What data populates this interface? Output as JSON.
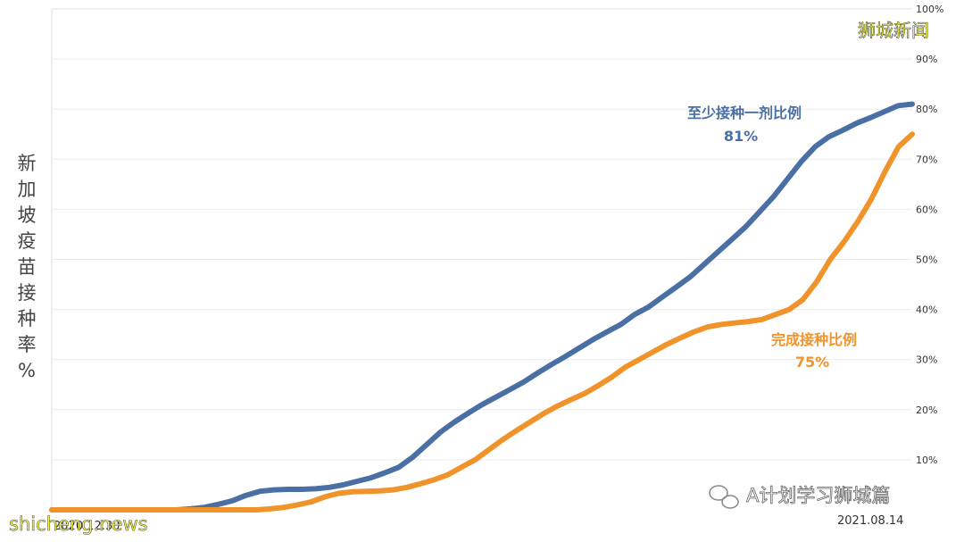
{
  "chart_data": {
    "type": "line",
    "ylabel": "新加坡疫苗接种率%",
    "y_ticks": [
      "10%",
      "20%",
      "30%",
      "40%",
      "50%",
      "60%",
      "70%",
      "80%",
      "90%",
      "100%"
    ],
    "ylim": [
      0,
      100
    ],
    "x_labels": [
      "2020.12.30",
      "2021.08.14"
    ],
    "grid": "horizontal",
    "series": [
      {
        "name": "至少接种一剂比例",
        "color": "#4a6fa5",
        "end_label": "81%",
        "values": [
          0,
          0,
          0,
          0,
          0,
          0,
          0,
          0,
          0,
          0,
          0.2,
          0.5,
          1.1,
          1.8,
          2.9,
          3.7,
          4.0,
          4.1,
          4.1,
          4.2,
          4.5,
          5.0,
          5.7,
          6.4,
          7.4,
          8.5,
          10.5,
          13.0,
          15.5,
          17.5,
          19.3,
          21.0,
          22.5,
          24.0,
          25.5,
          27.3,
          29.0,
          30.6,
          32.3,
          34.0,
          35.5,
          37.0,
          39.0,
          40.5,
          42.5,
          44.5,
          46.5,
          49.0,
          51.5,
          54.0,
          56.5,
          59.5,
          62.5,
          66.0,
          69.5,
          72.5,
          74.5,
          75.8,
          77.2,
          78.3,
          79.5,
          80.7,
          81.0
        ]
      },
      {
        "name": "完成接种比例",
        "color": "#f0932b",
        "end_label": "75%",
        "values": [
          0,
          0,
          0,
          0,
          0,
          0,
          0,
          0,
          0,
          0,
          0,
          0,
          0,
          0,
          0,
          0,
          0.2,
          0.5,
          1.0,
          1.6,
          2.6,
          3.3,
          3.6,
          3.7,
          3.8,
          4.0,
          4.5,
          5.2,
          6.0,
          7.0,
          8.5,
          10.0,
          12.0,
          14.0,
          15.8,
          17.5,
          19.2,
          20.7,
          22.0,
          23.2,
          24.8,
          26.5,
          28.5,
          30.0,
          31.5,
          33.0,
          34.3,
          35.5,
          36.5,
          37.0,
          37.3,
          37.6,
          38.0,
          39.0,
          40.0,
          42.0,
          45.5,
          50.0,
          53.5,
          57.5,
          62.0,
          67.5,
          72.5,
          75.0
        ]
      }
    ]
  },
  "watermarks": {
    "top_right": "狮城新闻",
    "bottom_left": "shicheng.news",
    "wechat": "A计划学习狮城篇"
  }
}
